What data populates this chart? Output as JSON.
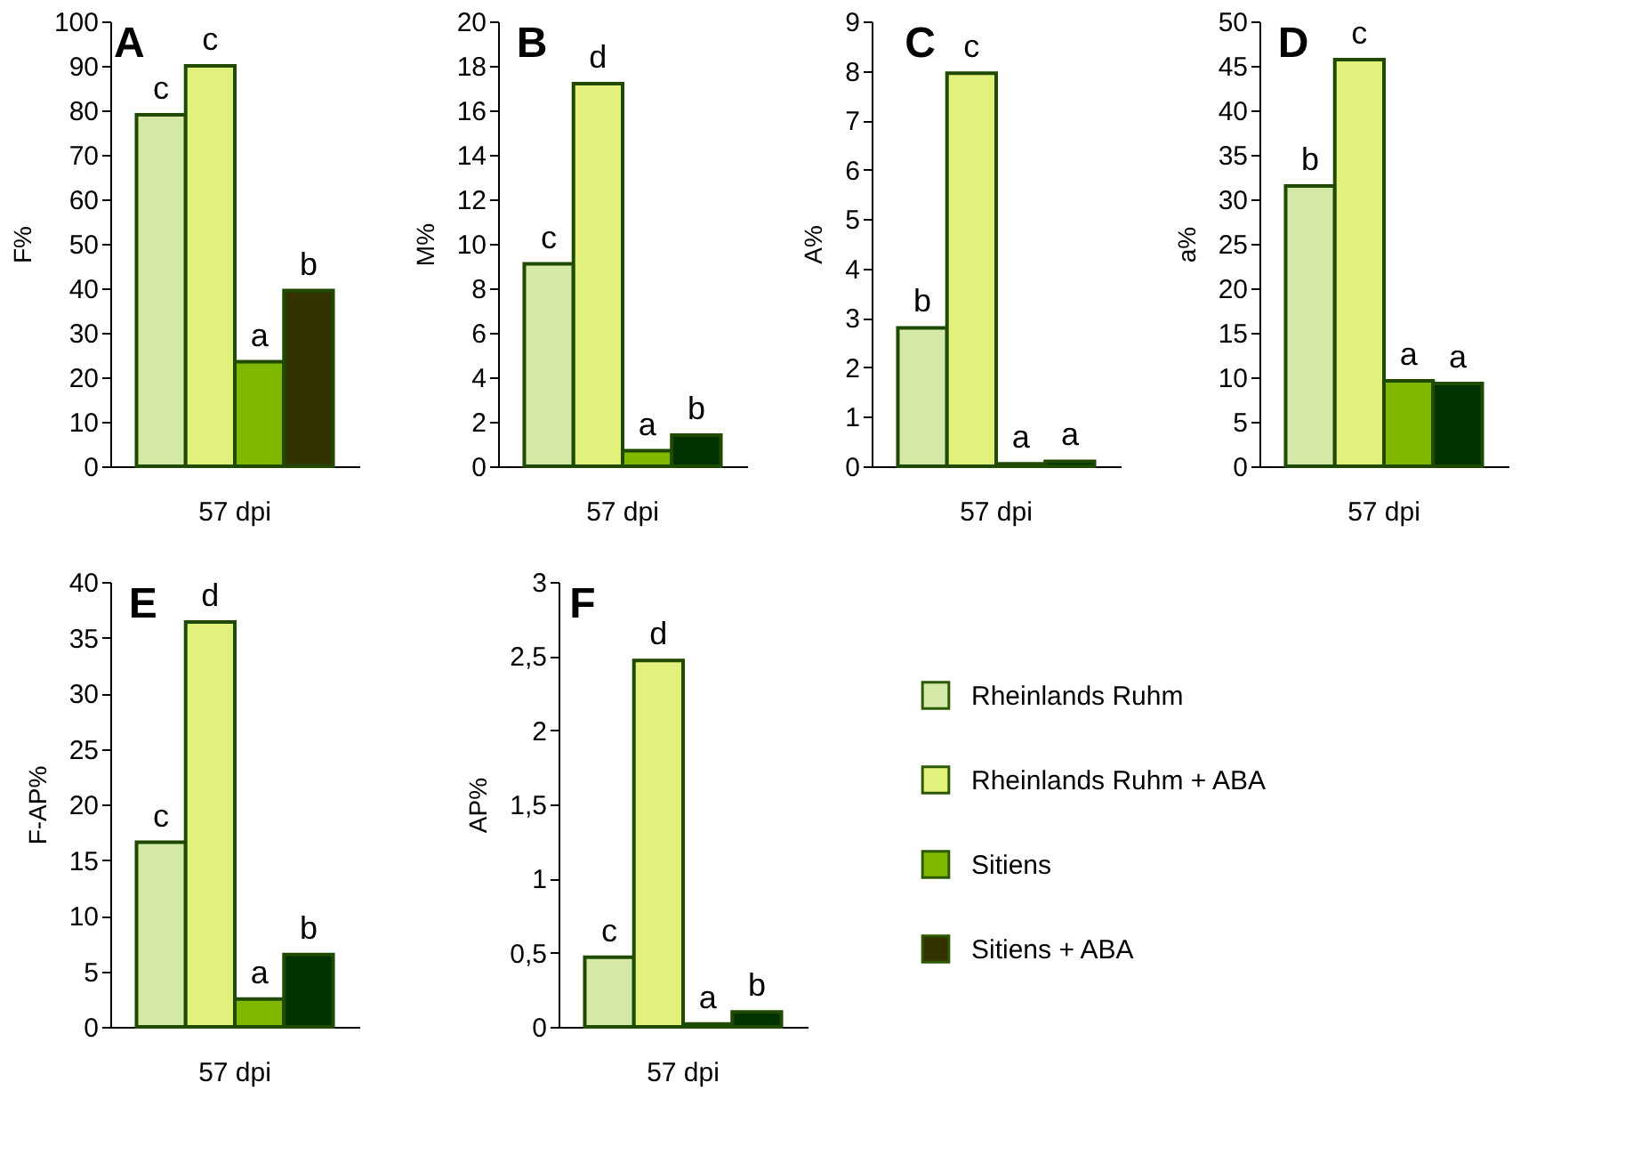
{
  "chart_data": [
    {
      "type": "bar",
      "title": "A",
      "ylabel": "F%",
      "categories": [
        "57 dpi"
      ],
      "ylim": [
        0,
        100
      ],
      "yticks": [
        0,
        10,
        20,
        30,
        40,
        50,
        60,
        70,
        80,
        90,
        100
      ],
      "grid": false,
      "legend": "bottom right",
      "series": [
        {
          "name": "Rheinlands Ruhm",
          "color": "#d4e9a8",
          "values": [
            79
          ],
          "value_labels": [
            "c"
          ]
        },
        {
          "name": "Rheinlands Ruhm + ABA",
          "color": "#e2f07c",
          "values": [
            90
          ],
          "value_labels": [
            "c"
          ]
        },
        {
          "name": "Sitiens",
          "color": "#80b800",
          "values": [
            23.5
          ],
          "value_labels": [
            "a"
          ]
        },
        {
          "name": "Sitiens + ABA",
          "color": "#333300",
          "values": [
            39.5
          ],
          "value_labels": [
            "b"
          ]
        }
      ]
    },
    {
      "type": "bar",
      "title": "B",
      "ylabel": "M%",
      "categories": [
        "57 dpi"
      ],
      "ylim": [
        0,
        20
      ],
      "yticks": [
        0,
        2,
        4,
        6,
        8,
        10,
        12,
        14,
        16,
        18,
        20
      ],
      "grid": false,
      "series": [
        {
          "color": "#d4e9a8",
          "values": [
            9.1
          ],
          "value_labels": [
            "c"
          ]
        },
        {
          "color": "#e2f07c",
          "values": [
            17.2
          ],
          "value_labels": [
            "d"
          ]
        },
        {
          "color": "#80b800",
          "values": [
            0.7
          ],
          "value_labels": [
            "a"
          ]
        },
        {
          "color": "#003300",
          "values": [
            1.4
          ],
          "value_labels": [
            "b"
          ]
        }
      ]
    },
    {
      "type": "bar",
      "title": "C",
      "ylabel": "A%",
      "categories": [
        "57 dpi"
      ],
      "ylim": [
        0,
        9
      ],
      "yticks": [
        0,
        1,
        2,
        3,
        4,
        5,
        6,
        7,
        8,
        9
      ],
      "grid": false,
      "series": [
        {
          "color": "#d4e9a8",
          "values": [
            2.8
          ],
          "value_labels": [
            "b"
          ]
        },
        {
          "color": "#e2f07c",
          "values": [
            7.95
          ],
          "value_labels": [
            "c"
          ]
        },
        {
          "color": "#80b800",
          "values": [
            0.05
          ],
          "value_labels": [
            "a"
          ]
        },
        {
          "color": "#003300",
          "values": [
            0.1
          ],
          "value_labels": [
            "a"
          ]
        }
      ]
    },
    {
      "type": "bar",
      "title": "D",
      "ylabel": "a%",
      "categories": [
        "57 dpi"
      ],
      "ylim": [
        0,
        50
      ],
      "yticks": [
        0,
        5,
        10,
        15,
        20,
        25,
        30,
        35,
        40,
        45,
        50
      ],
      "grid": false,
      "series": [
        {
          "color": "#d4e9a8",
          "values": [
            31.5
          ],
          "value_labels": [
            "b"
          ]
        },
        {
          "color": "#e2f07c",
          "values": [
            45.7
          ],
          "value_labels": [
            "c"
          ]
        },
        {
          "color": "#80b800",
          "values": [
            9.6
          ],
          "value_labels": [
            "a"
          ]
        },
        {
          "color": "#003300",
          "values": [
            9.3
          ],
          "value_labels": [
            "a"
          ]
        }
      ]
    },
    {
      "type": "bar",
      "title": "E",
      "ylabel": "F-AP%",
      "categories": [
        "57 dpi"
      ],
      "ylim": [
        0,
        40
      ],
      "yticks": [
        0,
        5,
        10,
        15,
        20,
        25,
        30,
        35,
        40
      ],
      "grid": false,
      "series": [
        {
          "color": "#d4e9a8",
          "values": [
            16.6
          ],
          "value_labels": [
            "c"
          ]
        },
        {
          "color": "#e2f07c",
          "values": [
            36.4
          ],
          "value_labels": [
            "d"
          ]
        },
        {
          "color": "#80b800",
          "values": [
            2.5
          ],
          "value_labels": [
            "a"
          ]
        },
        {
          "color": "#003300",
          "values": [
            6.5
          ],
          "value_labels": [
            "b"
          ]
        }
      ]
    },
    {
      "type": "bar",
      "title": "F",
      "ylabel": "AP%",
      "categories": [
        "57 dpi"
      ],
      "ylim": [
        0,
        3
      ],
      "yticks": [
        0,
        {
          "value": 0.5,
          "label": "0,5"
        },
        1,
        {
          "value": 1.5,
          "label": "1,5"
        },
        2,
        {
          "value": 2.5,
          "label": "2,5"
        },
        3
      ],
      "grid": false,
      "series": [
        {
          "color": "#d4e9a8",
          "values": [
            0.47
          ],
          "value_labels": [
            "c"
          ]
        },
        {
          "color": "#e2f07c",
          "values": [
            2.47
          ],
          "value_labels": [
            "d"
          ]
        },
        {
          "color": "#80b800",
          "values": [
            0.02
          ],
          "value_labels": [
            "a"
          ]
        },
        {
          "color": "#003300",
          "values": [
            0.1
          ],
          "value_labels": [
            "b"
          ]
        }
      ]
    }
  ]
}
